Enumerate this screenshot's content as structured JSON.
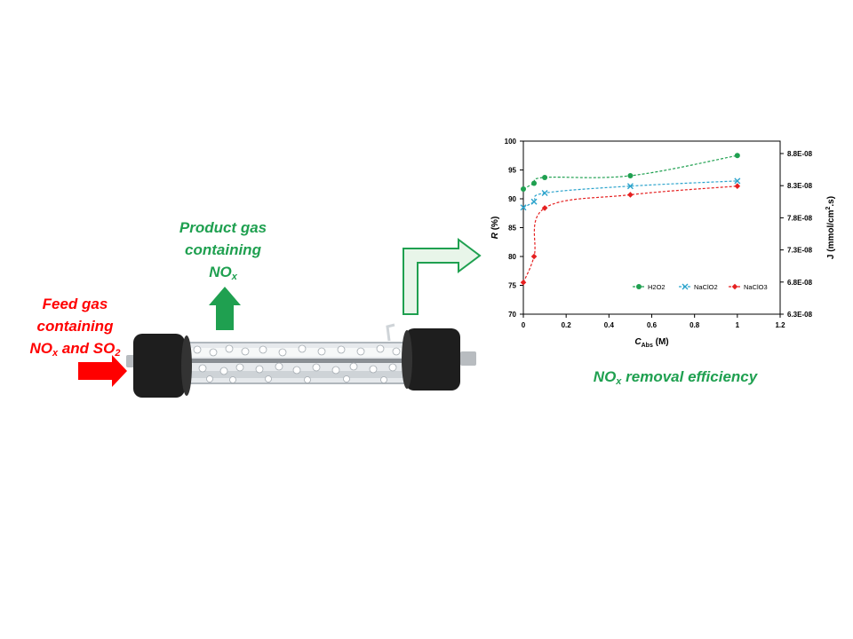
{
  "feed_gas": {
    "line1": "Feed gas",
    "line2": "containing",
    "line3_main": "NO",
    "line3_sub": "x",
    "line3_mid": " and SO",
    "line3_sub2": "2"
  },
  "product_gas": {
    "line1": "Product gas",
    "line2": "containing",
    "line3_main": "NO",
    "line3_sub": "x"
  },
  "caption": {
    "main": "NO",
    "sub": "x",
    "rest": " removal efficiency"
  },
  "colors": {
    "feed": "#ff0000",
    "product": "#1fa050",
    "frame_arrow": "#1fa050"
  },
  "chart_data": {
    "type": "line",
    "xlabel": {
      "italic": "C",
      "sub": "Abs",
      "rest": " (M)"
    },
    "ylabel": {
      "italic": "R",
      "rest": " (%)"
    },
    "y2label": {
      "main": "J (mmol/cm",
      "sup": "2",
      "rest": ".s)"
    },
    "xlim": [
      0,
      1.2
    ],
    "ylim": [
      70,
      100
    ],
    "y2lim": [
      6.3e-08,
      8.8e-08
    ],
    "xticks": [
      "0",
      "0.2",
      "0.4",
      "0.6",
      "0.8",
      "1",
      "1.2"
    ],
    "yticks": [
      "70",
      "75",
      "80",
      "85",
      "90",
      "95",
      "100"
    ],
    "y2ticks": [
      "6.3E-08",
      "6.8E-08",
      "7.3E-08",
      "7.8E-08",
      "8.3E-08",
      "8.8E-08"
    ],
    "legend_position": "bottom-right",
    "grid": false,
    "series": [
      {
        "name": "H2O2",
        "color": "#1fa050",
        "marker": "circle",
        "x": [
          0,
          0.05,
          0.1,
          0.5,
          1.0
        ],
        "y": [
          91.7,
          92.7,
          93.7,
          94.0,
          97.5
        ]
      },
      {
        "name": "NaClO2",
        "color": "#2ba3cc",
        "marker": "x",
        "x": [
          0,
          0.05,
          0.1,
          0.5,
          1.0
        ],
        "y": [
          88.5,
          89.5,
          91.0,
          92.2,
          93.1
        ]
      },
      {
        "name": "NaClO3",
        "color": "#e52020",
        "marker": "diamond",
        "x": [
          0,
          0.05,
          0.1,
          0.5,
          1.0
        ],
        "y": [
          75.5,
          80.0,
          88.4,
          90.7,
          92.2
        ]
      }
    ]
  }
}
